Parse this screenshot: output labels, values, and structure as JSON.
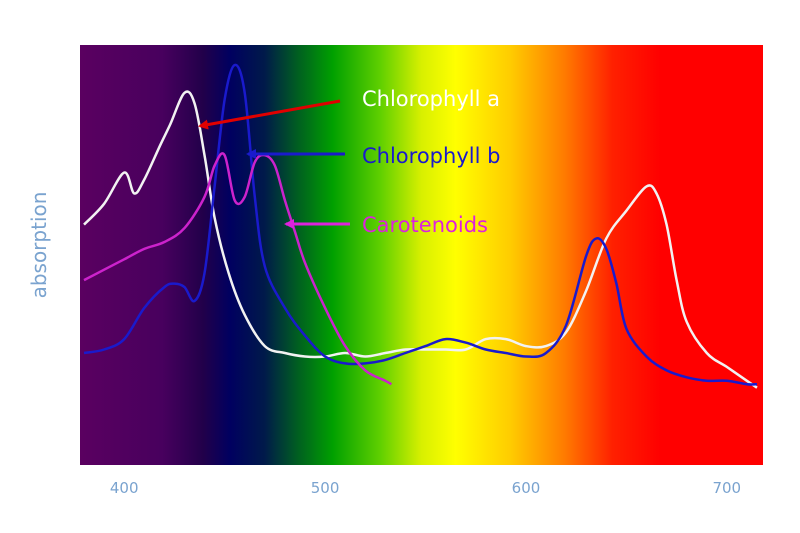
{
  "chart_data": {
    "type": "line",
    "ylabel": "absorption",
    "xlim": [
      378,
      718
    ],
    "ylim": [
      0,
      1
    ],
    "x_ticks": [
      400,
      500,
      600,
      700
    ],
    "background": "visible light spectrum gradient (violet to red)",
    "series": [
      {
        "name": "Chlorophyll a",
        "color": "#f2f2f2",
        "points": [
          [
            380,
            0.54
          ],
          [
            390,
            0.6
          ],
          [
            400,
            0.69
          ],
          [
            405,
            0.63
          ],
          [
            410,
            0.67
          ],
          [
            418,
            0.77
          ],
          [
            423,
            0.83
          ],
          [
            430,
            0.92
          ],
          [
            435,
            0.89
          ],
          [
            440,
            0.74
          ],
          [
            445,
            0.56
          ],
          [
            452,
            0.4
          ],
          [
            460,
            0.28
          ],
          [
            470,
            0.19
          ],
          [
            480,
            0.17
          ],
          [
            490,
            0.16
          ],
          [
            500,
            0.16
          ],
          [
            510,
            0.17
          ],
          [
            520,
            0.16
          ],
          [
            530,
            0.17
          ],
          [
            540,
            0.18
          ],
          [
            550,
            0.18
          ],
          [
            560,
            0.18
          ],
          [
            570,
            0.18
          ],
          [
            580,
            0.21
          ],
          [
            590,
            0.21
          ],
          [
            600,
            0.19
          ],
          [
            610,
            0.19
          ],
          [
            620,
            0.23
          ],
          [
            630,
            0.35
          ],
          [
            640,
            0.5
          ],
          [
            650,
            0.58
          ],
          [
            660,
            0.65
          ],
          [
            665,
            0.63
          ],
          [
            670,
            0.54
          ],
          [
            675,
            0.38
          ],
          [
            680,
            0.26
          ],
          [
            690,
            0.17
          ],
          [
            700,
            0.13
          ],
          [
            710,
            0.09
          ],
          [
            715,
            0.07
          ]
        ]
      },
      {
        "name": "Chlorophyll b",
        "color": "#1a1acc",
        "points": [
          [
            380,
            0.17
          ],
          [
            390,
            0.18
          ],
          [
            400,
            0.21
          ],
          [
            410,
            0.3
          ],
          [
            420,
            0.36
          ],
          [
            425,
            0.37
          ],
          [
            430,
            0.36
          ],
          [
            435,
            0.32
          ],
          [
            440,
            0.4
          ],
          [
            445,
            0.65
          ],
          [
            450,
            0.9
          ],
          [
            455,
            1.0
          ],
          [
            460,
            0.92
          ],
          [
            465,
            0.62
          ],
          [
            470,
            0.42
          ],
          [
            480,
            0.3
          ],
          [
            490,
            0.22
          ],
          [
            500,
            0.16
          ],
          [
            510,
            0.14
          ],
          [
            520,
            0.14
          ],
          [
            530,
            0.15
          ],
          [
            540,
            0.17
          ],
          [
            550,
            0.19
          ],
          [
            560,
            0.21
          ],
          [
            570,
            0.2
          ],
          [
            580,
            0.18
          ],
          [
            590,
            0.17
          ],
          [
            600,
            0.16
          ],
          [
            610,
            0.17
          ],
          [
            620,
            0.25
          ],
          [
            630,
            0.45
          ],
          [
            635,
            0.5
          ],
          [
            640,
            0.47
          ],
          [
            645,
            0.37
          ],
          [
            650,
            0.24
          ],
          [
            660,
            0.16
          ],
          [
            670,
            0.12
          ],
          [
            680,
            0.1
          ],
          [
            690,
            0.09
          ],
          [
            700,
            0.09
          ],
          [
            710,
            0.08
          ],
          [
            715,
            0.08
          ]
        ]
      },
      {
        "name": "Carotenoids",
        "color": "#cc22cc",
        "points": [
          [
            380,
            0.38
          ],
          [
            390,
            0.41
          ],
          [
            400,
            0.44
          ],
          [
            410,
            0.47
          ],
          [
            420,
            0.49
          ],
          [
            430,
            0.53
          ],
          [
            440,
            0.62
          ],
          [
            445,
            0.71
          ],
          [
            450,
            0.74
          ],
          [
            455,
            0.61
          ],
          [
            460,
            0.62
          ],
          [
            465,
            0.72
          ],
          [
            470,
            0.74
          ],
          [
            475,
            0.71
          ],
          [
            480,
            0.61
          ],
          [
            485,
            0.52
          ],
          [
            490,
            0.43
          ],
          [
            500,
            0.3
          ],
          [
            510,
            0.19
          ],
          [
            520,
            0.12
          ],
          [
            530,
            0.09
          ],
          [
            533,
            0.08
          ]
        ]
      }
    ],
    "annotations": [
      {
        "text": "Chlorophyll a",
        "color": "#ffffff"
      },
      {
        "text": "Chlorophyll b",
        "color": "#1a1acc"
      },
      {
        "text": "Carotenoids",
        "color": "#dd22dd"
      }
    ]
  }
}
